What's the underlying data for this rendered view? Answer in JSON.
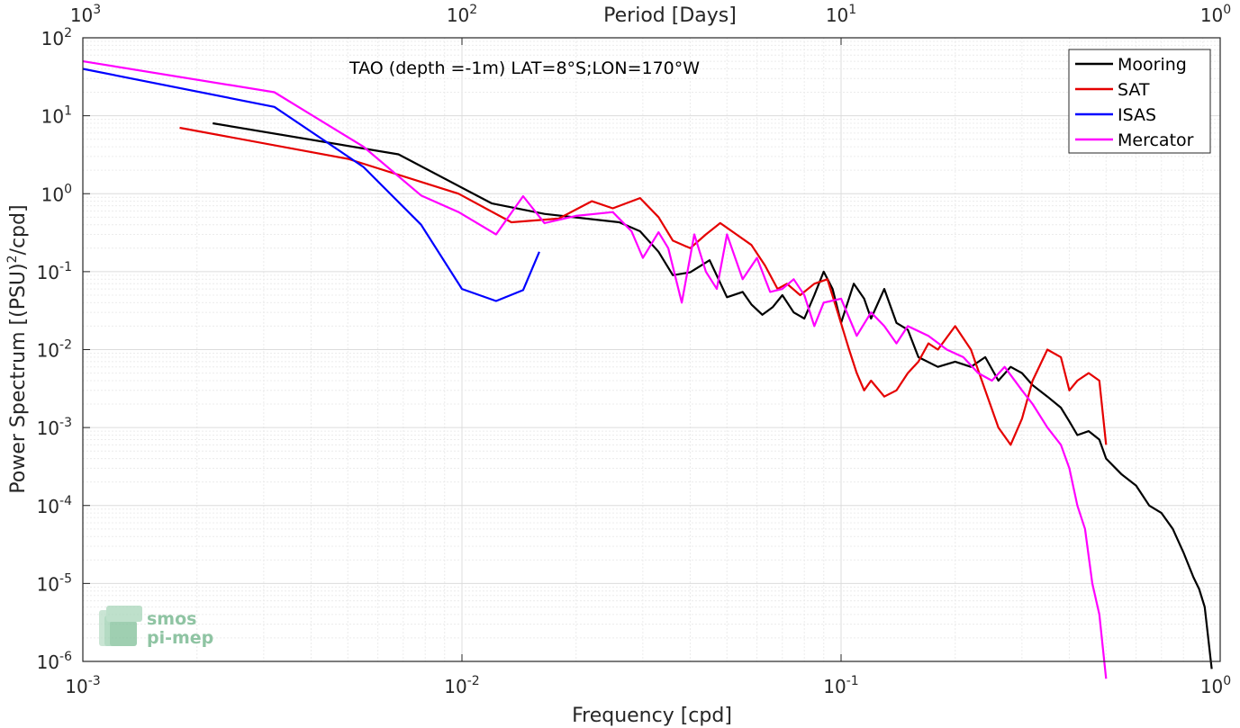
{
  "chart_data": {
    "type": "line",
    "title": "",
    "annotation": "TAO (depth =-1m) LAT=8°S;LON=170°W",
    "xlabel": "Frequency [cpd]",
    "ylabel": "Power Spectrum [(PSU)",
    "ylabel_sup": "2",
    "ylabel_tail": "/cpd]",
    "top_axis_label": "Period [Days]",
    "xscale": "log",
    "yscale": "log",
    "xlim": [
      0.001,
      1
    ],
    "ylim": [
      1e-06,
      100
    ],
    "grid": true,
    "legend_position": "top-right",
    "x_ticks": [
      {
        "value": 0.001,
        "base": "10",
        "exp": "-3"
      },
      {
        "value": 0.01,
        "base": "10",
        "exp": "-2"
      },
      {
        "value": 0.1,
        "base": "10",
        "exp": "-1"
      },
      {
        "value": 1,
        "base": "10",
        "exp": "0"
      }
    ],
    "y_ticks": [
      {
        "value": 100,
        "base": "10",
        "exp": "2"
      },
      {
        "value": 10,
        "base": "10",
        "exp": "1"
      },
      {
        "value": 1,
        "base": "10",
        "exp": "0"
      },
      {
        "value": 0.1,
        "base": "10",
        "exp": "-1"
      },
      {
        "value": 0.01,
        "base": "10",
        "exp": "-2"
      },
      {
        "value": 0.001,
        "base": "10",
        "exp": "-3"
      },
      {
        "value": 0.0001,
        "base": "10",
        "exp": "-4"
      },
      {
        "value": 1e-05,
        "base": "10",
        "exp": "-5"
      },
      {
        "value": 1e-06,
        "base": "10",
        "exp": "-6"
      }
    ],
    "top_ticks": [
      {
        "period": 1000,
        "base": "10",
        "exp": "3"
      },
      {
        "period": 100,
        "base": "10",
        "exp": "2"
      },
      {
        "period": 10,
        "base": "10",
        "exp": "1"
      },
      {
        "period": 1,
        "base": "10",
        "exp": "0"
      }
    ],
    "series": [
      {
        "name": "Mooring",
        "color": "#000000",
        "x": [
          0.0022,
          0.0068,
          0.012,
          0.0165,
          0.026,
          0.0295,
          0.033,
          0.036,
          0.04,
          0.045,
          0.05,
          0.055,
          0.058,
          0.062,
          0.066,
          0.07,
          0.075,
          0.08,
          0.085,
          0.09,
          0.095,
          0.1,
          0.108,
          0.115,
          0.12,
          0.13,
          0.14,
          0.15,
          0.16,
          0.18,
          0.2,
          0.22,
          0.24,
          0.26,
          0.28,
          0.3,
          0.32,
          0.35,
          0.38,
          0.4,
          0.42,
          0.45,
          0.48,
          0.5,
          0.55,
          0.6,
          0.65,
          0.7,
          0.75,
          0.8,
          0.85,
          0.88,
          0.91,
          0.93,
          0.95
        ],
        "y": [
          8,
          3.2,
          0.75,
          0.55,
          0.43,
          0.33,
          0.18,
          0.09,
          0.098,
          0.14,
          0.047,
          0.055,
          0.038,
          0.028,
          0.035,
          0.05,
          0.03,
          0.025,
          0.05,
          0.1,
          0.06,
          0.022,
          0.07,
          0.045,
          0.025,
          0.06,
          0.022,
          0.018,
          0.008,
          0.006,
          0.007,
          0.006,
          0.008,
          0.004,
          0.006,
          0.005,
          0.0035,
          0.0025,
          0.0018,
          0.0012,
          0.0008,
          0.0009,
          0.0007,
          0.0004,
          0.00025,
          0.00018,
          0.0001,
          8e-05,
          5e-05,
          2.5e-05,
          1.2e-05,
          8.5e-06,
          5e-06,
          2e-06,
          8e-07
        ]
      },
      {
        "name": "SAT",
        "color": "#e50000",
        "x": [
          0.0018,
          0.005,
          0.0098,
          0.0135,
          0.018,
          0.022,
          0.025,
          0.0295,
          0.033,
          0.036,
          0.04,
          0.044,
          0.048,
          0.052,
          0.058,
          0.063,
          0.068,
          0.072,
          0.078,
          0.085,
          0.092,
          0.098,
          0.105,
          0.11,
          0.115,
          0.12,
          0.13,
          0.14,
          0.15,
          0.16,
          0.17,
          0.18,
          0.2,
          0.22,
          0.24,
          0.26,
          0.28,
          0.3,
          0.32,
          0.35,
          0.38,
          0.4,
          0.42,
          0.45,
          0.48,
          0.5
        ],
        "y": [
          7,
          2.8,
          1.0,
          0.43,
          0.48,
          0.8,
          0.65,
          0.88,
          0.5,
          0.25,
          0.2,
          0.3,
          0.42,
          0.32,
          0.22,
          0.12,
          0.06,
          0.07,
          0.05,
          0.07,
          0.08,
          0.03,
          0.01,
          0.005,
          0.003,
          0.004,
          0.0025,
          0.003,
          0.005,
          0.007,
          0.012,
          0.01,
          0.02,
          0.01,
          0.003,
          0.001,
          0.0006,
          0.0013,
          0.004,
          0.01,
          0.008,
          0.003,
          0.004,
          0.005,
          0.004,
          0.0006
        ]
      },
      {
        "name": "ISAS",
        "color": "#0000ff",
        "x": [
          0.001,
          0.0032,
          0.0055,
          0.0078,
          0.01,
          0.0123,
          0.0145,
          0.016
        ],
        "y": [
          40,
          13,
          2.2,
          0.4,
          0.06,
          0.042,
          0.058,
          0.18
        ]
      },
      {
        "name": "Mercator",
        "color": "#ff00ff",
        "x": [
          0.001,
          0.0032,
          0.0055,
          0.0078,
          0.0098,
          0.0123,
          0.0145,
          0.0165,
          0.02,
          0.025,
          0.028,
          0.03,
          0.033,
          0.035,
          0.038,
          0.041,
          0.044,
          0.047,
          0.05,
          0.055,
          0.06,
          0.065,
          0.07,
          0.075,
          0.08,
          0.085,
          0.09,
          0.1,
          0.11,
          0.12,
          0.13,
          0.14,
          0.15,
          0.17,
          0.19,
          0.21,
          0.23,
          0.25,
          0.27,
          0.3,
          0.32,
          0.35,
          0.38,
          0.4,
          0.42,
          0.44,
          0.46,
          0.48,
          0.5
        ],
        "y": [
          50,
          20,
          4.0,
          0.95,
          0.58,
          0.3,
          0.93,
          0.42,
          0.52,
          0.58,
          0.33,
          0.15,
          0.32,
          0.2,
          0.04,
          0.3,
          0.1,
          0.06,
          0.3,
          0.08,
          0.15,
          0.055,
          0.06,
          0.08,
          0.05,
          0.02,
          0.04,
          0.045,
          0.015,
          0.03,
          0.02,
          0.012,
          0.02,
          0.015,
          0.01,
          0.008,
          0.005,
          0.004,
          0.006,
          0.003,
          0.002,
          0.001,
          0.0006,
          0.0003,
          0.0001,
          5e-05,
          1e-05,
          4e-06,
          6e-07
        ]
      }
    ]
  },
  "logo": {
    "line1": "smos",
    "line2": "pi-mep"
  }
}
